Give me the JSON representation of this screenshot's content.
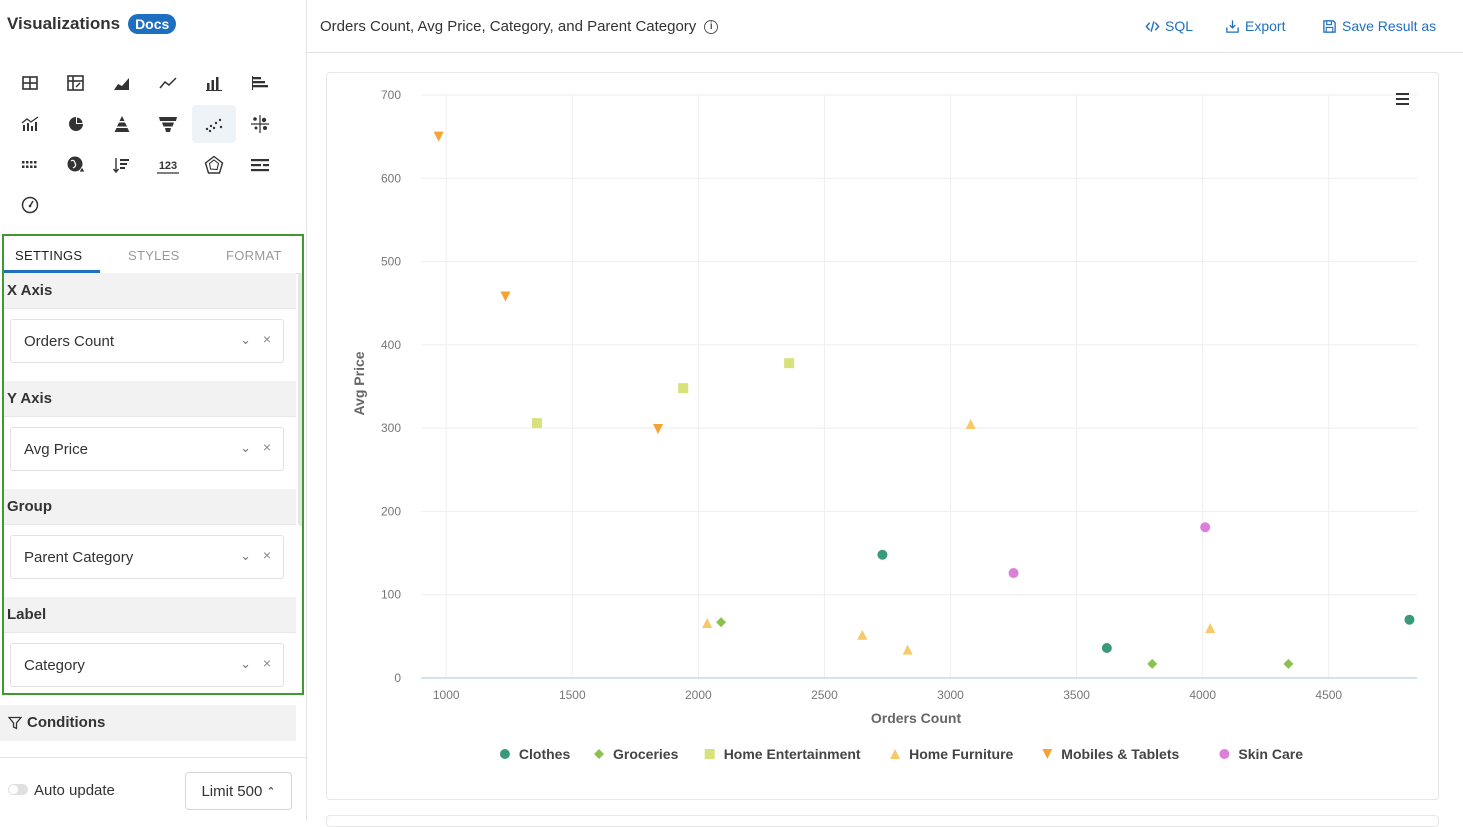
{
  "sidebar": {
    "title": "Visualizations",
    "docs_badge": "Docs",
    "chart_icons": [
      "table-icon",
      "pivot-table-icon",
      "area-chart-icon",
      "line-chart-icon",
      "column-chart-icon",
      "bar-chart-icon",
      "combo-chart-icon",
      "pie-chart-icon",
      "pyramid-chart-icon",
      "funnel-chart-icon",
      "scatter-chart-icon",
      "bubble-chart-icon",
      "heatmap-icon",
      "map-icon",
      "sorted-bar-icon",
      "number-icon",
      "radar-chart-icon",
      "gantt-chart-icon",
      "gauge-icon"
    ],
    "number_icon_text": "123",
    "active_icon": "scatter-chart-icon",
    "tabs": [
      "SETTINGS",
      "STYLES",
      "FORMAT"
    ],
    "active_tab": "SETTINGS",
    "fields": [
      {
        "label": "X Axis",
        "value": "Orders Count"
      },
      {
        "label": "Y Axis",
        "value": "Avg Price"
      },
      {
        "label": "Group",
        "value": "Parent Category"
      },
      {
        "label": "Label",
        "value": "Category"
      }
    ],
    "conditions_label": "Conditions",
    "auto_update_label": "Auto update",
    "auto_update_on": false,
    "limit_label": "Limit 500"
  },
  "topbar": {
    "title": "Orders Count, Avg Price, Category, and Parent Category",
    "sql_label": "SQL",
    "export_label": "Export",
    "save_label": "Save Result as"
  },
  "colors": {
    "accent": "#1f6fc0",
    "highlight_border": "#3e9a2e"
  },
  "chart_data": {
    "type": "scatter",
    "title": "",
    "xlabel": "Orders Count",
    "ylabel": "Avg Price",
    "xlim": [
      900,
      4850
    ],
    "ylim": [
      0,
      700
    ],
    "x_ticks": [
      1000,
      1500,
      2000,
      2500,
      3000,
      3500,
      4000,
      4500
    ],
    "y_ticks": [
      0,
      100,
      200,
      300,
      400,
      500,
      600,
      700
    ],
    "grid": true,
    "legend_position": "bottom",
    "series": [
      {
        "name": "Clothes",
        "color": "#3a9a78",
        "marker": "circle",
        "points": [
          [
            2730,
            148
          ],
          [
            3620,
            36
          ],
          [
            4820,
            70
          ]
        ]
      },
      {
        "name": "Groceries",
        "color": "#8cc152",
        "marker": "diamond",
        "points": [
          [
            2090,
            67
          ],
          [
            3800,
            17
          ],
          [
            4340,
            17
          ]
        ]
      },
      {
        "name": "Home Entertainment",
        "color": "#d8e27a",
        "marker": "square",
        "points": [
          [
            1360,
            306
          ],
          [
            1940,
            348
          ],
          [
            2360,
            378
          ]
        ]
      },
      {
        "name": "Home Furniture",
        "color": "#f7c96a",
        "marker": "triangle-up",
        "points": [
          [
            2035,
            66
          ],
          [
            2650,
            52
          ],
          [
            2830,
            34
          ],
          [
            3080,
            305
          ],
          [
            4030,
            60
          ]
        ]
      },
      {
        "name": "Mobiles & Tablets",
        "color": "#f5a333",
        "marker": "triangle-down",
        "points": [
          [
            970,
            650
          ],
          [
            1235,
            458
          ],
          [
            1840,
            299
          ]
        ]
      },
      {
        "name": "Skin Care",
        "color": "#dc7fd9",
        "marker": "circle",
        "points": [
          [
            3250,
            126
          ],
          [
            4010,
            181
          ]
        ]
      }
    ]
  }
}
